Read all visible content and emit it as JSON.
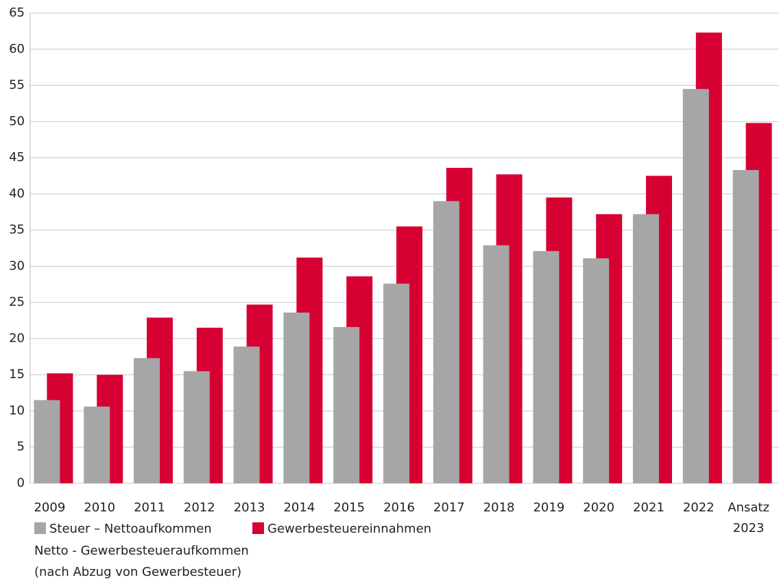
{
  "chart_data": {
    "type": "bar",
    "categories": [
      "2009",
      "2010",
      "2011",
      "2012",
      "2013",
      "2014",
      "2015",
      "2016",
      "2017",
      "2018",
      "2019",
      "2020",
      "2021",
      "2022",
      "Ansatz\n2023"
    ],
    "series": [
      {
        "name": "Steuer – Nettoaufkommen",
        "color": "#a6a6a6",
        "values": [
          11.5,
          10.6,
          17.3,
          15.5,
          18.9,
          23.6,
          21.6,
          27.6,
          39.0,
          32.9,
          32.1,
          31.1,
          37.2,
          54.5,
          43.3
        ]
      },
      {
        "name": "Gewerbesteuereinnahmen",
        "color": "#d70033",
        "values": [
          15.2,
          15.0,
          22.9,
          21.5,
          24.7,
          31.2,
          28.6,
          35.5,
          43.6,
          42.7,
          39.5,
          37.2,
          42.5,
          62.3,
          49.8
        ]
      }
    ],
    "ylim": [
      0,
      65
    ],
    "yticks": [
      0,
      5,
      10,
      15,
      20,
      25,
      30,
      35,
      40,
      45,
      50,
      55,
      60,
      65
    ],
    "grid": true,
    "footnote": [
      "Netto - Gewerbesteueraufkommen",
      "(nach Abzug von Gewerbesteuer)"
    ]
  }
}
